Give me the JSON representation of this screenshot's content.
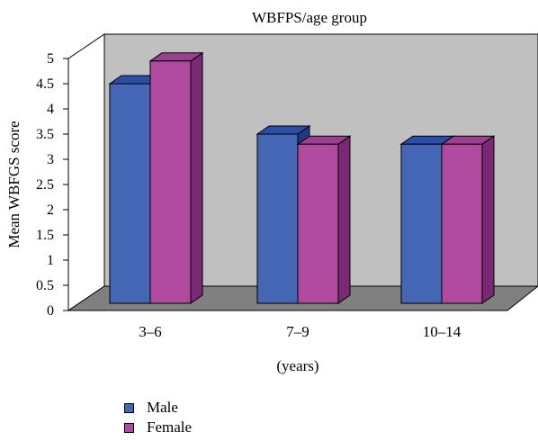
{
  "chart_data": {
    "type": "bar",
    "title": "WBFPS/age group",
    "xlabel": "(years)",
    "ylabel": "Mean WBFGS score",
    "categories": [
      "3–6",
      "7–9",
      "10–14"
    ],
    "series": [
      {
        "name": "Male",
        "values": [
          4.5,
          3.5,
          3.3
        ],
        "color": "#4466b4"
      },
      {
        "name": "Female",
        "values": [
          4.95,
          3.3,
          3.3
        ],
        "color": "#b04a9e"
      }
    ],
    "ylim": [
      0,
      5
    ],
    "yticks": [
      "0",
      "0.5",
      "1",
      "1.5",
      "2",
      "2.5",
      "3",
      "3.5",
      "4",
      "4.5",
      "5"
    ],
    "legend_position": "bottom-left",
    "style": "3d-clustered-column"
  },
  "legend": {
    "items": [
      {
        "label": "Male",
        "color": "#4466b4"
      },
      {
        "label": "Female",
        "color": "#b04a9e"
      }
    ]
  }
}
